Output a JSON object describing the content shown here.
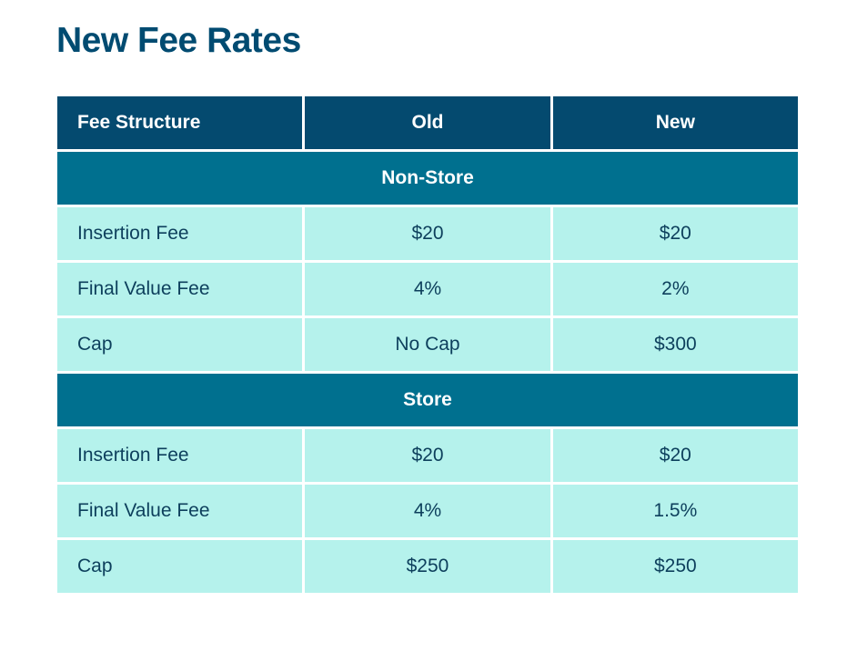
{
  "title": "New Fee Rates",
  "columns": [
    "Fee Structure",
    "Old",
    "New"
  ],
  "sections": [
    {
      "name": "Non-Store",
      "rows": [
        {
          "label": "Insertion Fee",
          "old": "$20",
          "new": "$20"
        },
        {
          "label": "Final Value Fee",
          "old": "4%",
          "new": "2%"
        },
        {
          "label": "Cap",
          "old": "No Cap",
          "new": "$300"
        }
      ]
    },
    {
      "name": "Store",
      "rows": [
        {
          "label": "Insertion Fee",
          "old": "$20",
          "new": "$20"
        },
        {
          "label": "Final Value Fee",
          "old": "4%",
          "new": "1.5%"
        },
        {
          "label": "Cap",
          "old": "$250",
          "new": "$250"
        }
      ]
    }
  ],
  "colors": {
    "title": "#004b71",
    "header_bg": "#044a6f",
    "section_bg": "#00708f",
    "row_bg": "#b5f2ec",
    "text": "#0d3f5c"
  }
}
